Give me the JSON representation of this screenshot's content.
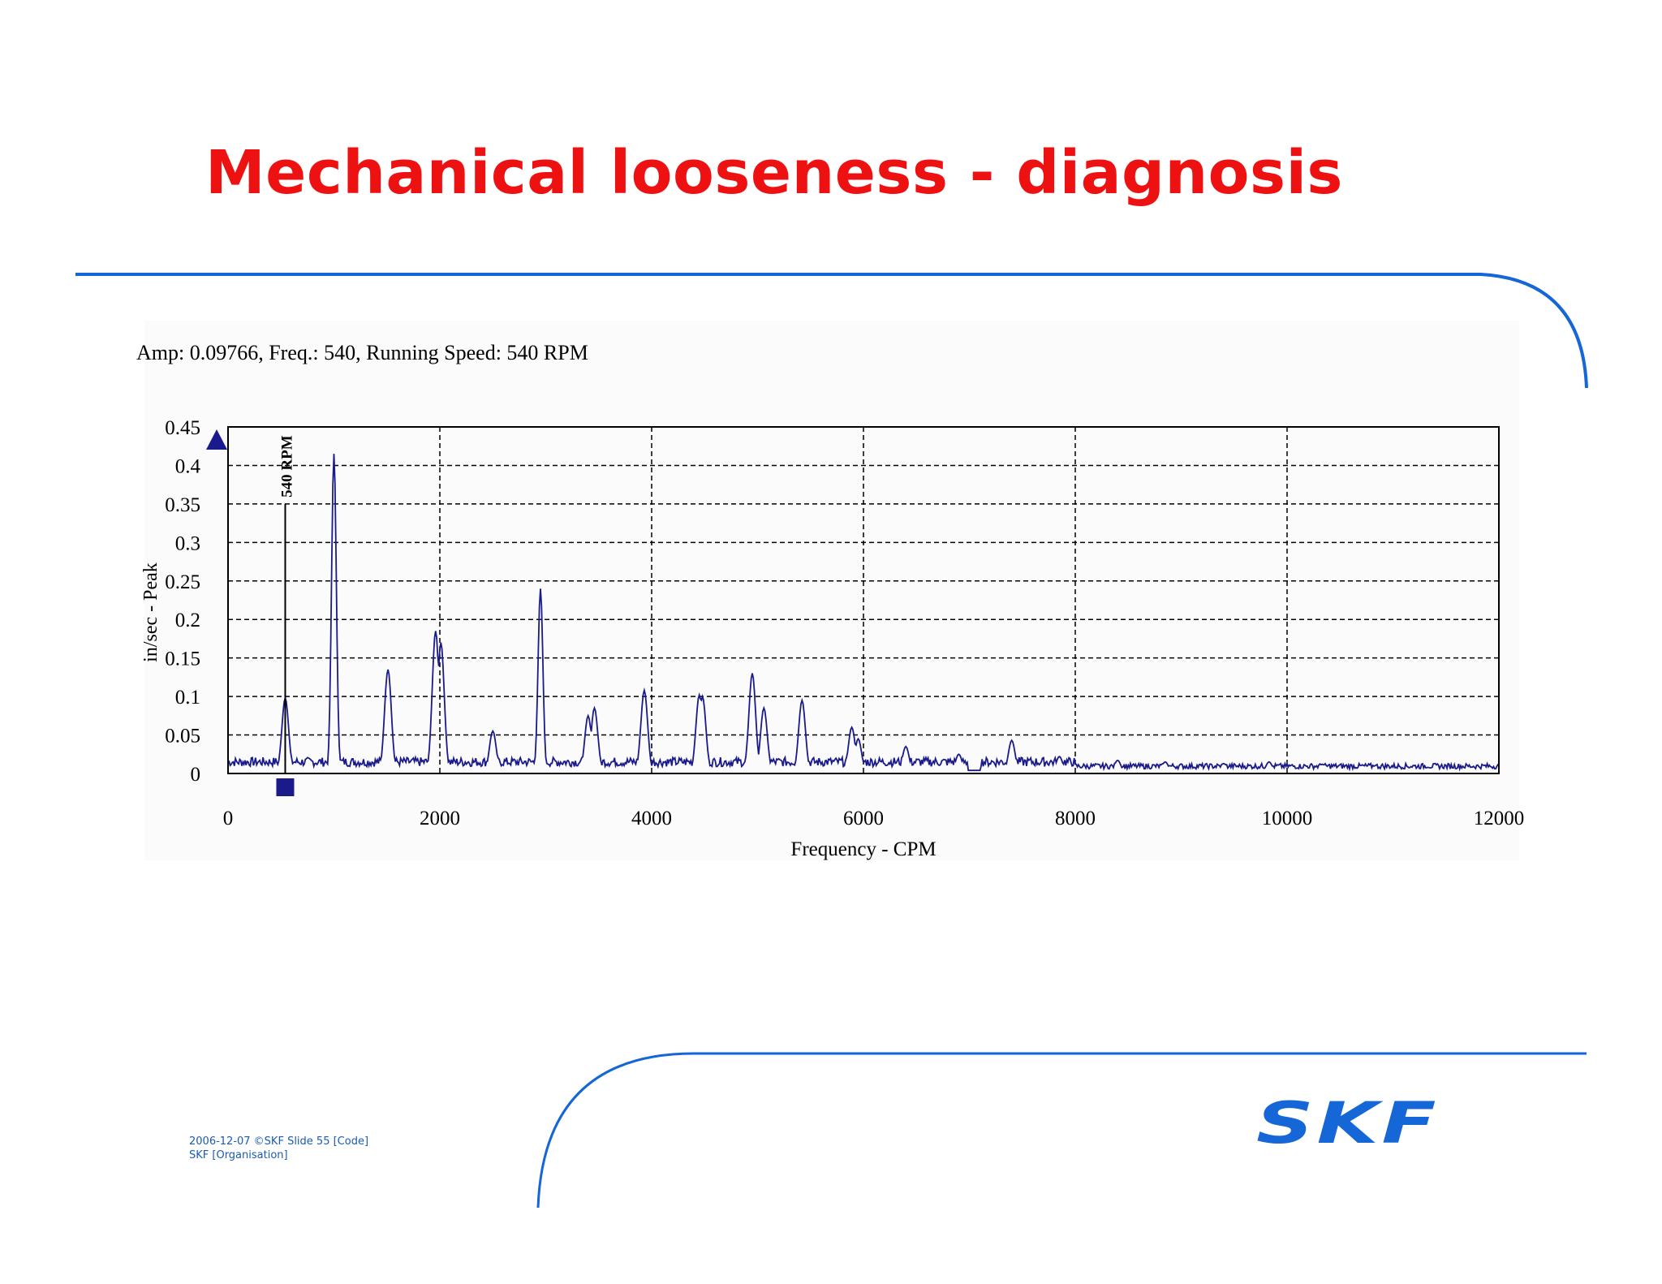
{
  "slide": {
    "title": "Mechanical looseness - diagnosis",
    "footer_line1": "2006-12-07  ©SKF  Slide 55  [Code]",
    "footer_line2": "SKF [Organisation]",
    "logo_text": "SKF",
    "colors": {
      "title": "#ee1111",
      "accent": "#1566d6",
      "trace": "#1a1a8c"
    }
  },
  "chart_data": {
    "type": "line",
    "header": "Amp: 0.09766, Freq.: 540, Running Speed: 540 RPM",
    "xlabel": "Frequency - CPM",
    "ylabel": "in/sec - Peak",
    "xlim": [
      0,
      12000
    ],
    "ylim": [
      0,
      0.45
    ],
    "xticks": [
      0,
      2000,
      4000,
      6000,
      8000,
      10000,
      12000
    ],
    "xtick_labels": [
      "0",
      "2000",
      "4000",
      "6000",
      "8000",
      "10000",
      "12000"
    ],
    "yticks": [
      0,
      0.05,
      0.1,
      0.15,
      0.2,
      0.25,
      0.3,
      0.35,
      0.4,
      0.45
    ],
    "ytick_labels": [
      "0",
      "0.05",
      "0.1",
      "0.15",
      "0.2",
      "0.25",
      "0.3",
      "0.35",
      "0.4",
      "0.45"
    ],
    "grid": true,
    "grid_style": "dashed",
    "marker": {
      "x": 540,
      "label": "540 RPM",
      "line_top": 0.35
    },
    "series": [
      {
        "peaks": [
          {
            "x": 540,
            "y": 0.098
          },
          {
            "x": 1000,
            "y": 0.415
          },
          {
            "x": 1510,
            "y": 0.135
          },
          {
            "x": 1960,
            "y": 0.185
          },
          {
            "x": 2010,
            "y": 0.17
          },
          {
            "x": 2500,
            "y": 0.055
          },
          {
            "x": 2950,
            "y": 0.24
          },
          {
            "x": 3400,
            "y": 0.075
          },
          {
            "x": 3460,
            "y": 0.085
          },
          {
            "x": 3930,
            "y": 0.108
          },
          {
            "x": 4450,
            "y": 0.102
          },
          {
            "x": 4480,
            "y": 0.1
          },
          {
            "x": 4950,
            "y": 0.13
          },
          {
            "x": 5060,
            "y": 0.085
          },
          {
            "x": 5420,
            "y": 0.095
          },
          {
            "x": 5890,
            "y": 0.06
          },
          {
            "x": 5950,
            "y": 0.045
          },
          {
            "x": 6400,
            "y": 0.035
          },
          {
            "x": 6900,
            "y": 0.025
          },
          {
            "x": 7400,
            "y": 0.043
          },
          {
            "x": 7850,
            "y": 0.022
          },
          {
            "x": 8400,
            "y": 0.017
          },
          {
            "x": 8850,
            "y": 0.015
          },
          {
            "x": 9400,
            "y": 0.013
          },
          {
            "x": 9830,
            "y": 0.015
          },
          {
            "x": 10330,
            "y": 0.012
          },
          {
            "x": 10830,
            "y": 0.01
          },
          {
            "x": 11330,
            "y": 0.008
          },
          {
            "x": 11800,
            "y": 0.007
          }
        ]
      }
    ]
  }
}
